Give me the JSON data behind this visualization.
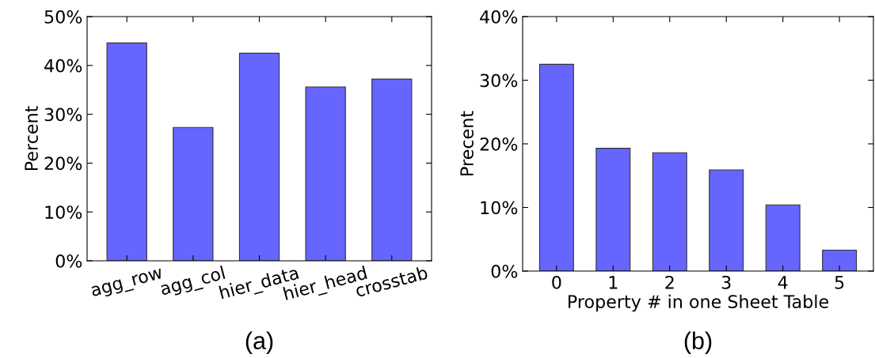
{
  "chart_data": [
    {
      "type": "bar",
      "title": "(a)",
      "ylabel": "Percent",
      "categories": [
        "agg_row",
        "agg_col",
        "hier_data",
        "hier_head",
        "crosstab"
      ],
      "values": [
        44.6,
        27.3,
        42.5,
        35.6,
        37.2
      ],
      "color": "#6666ff",
      "ylim": [
        0,
        50
      ],
      "yticks": [
        {
          "value": 0,
          "label": "0%"
        },
        {
          "value": 10,
          "label": "10%"
        },
        {
          "value": 20,
          "label": "20%"
        },
        {
          "value": 30,
          "label": "30%"
        },
        {
          "value": 40,
          "label": "40%"
        },
        {
          "value": 50,
          "label": "50%"
        }
      ],
      "grid": false
    },
    {
      "type": "bar",
      "title": "(b)",
      "xlabel": "Property # in one Sheet Table",
      "ylabel": "Precent",
      "categories": [
        "0",
        "1",
        "2",
        "3",
        "4",
        "5"
      ],
      "values": [
        32.5,
        19.3,
        18.6,
        15.9,
        10.4,
        3.3
      ],
      "color": "#6666ff",
      "ylim": [
        0,
        40
      ],
      "yticks": [
        {
          "value": 0,
          "label": "0%"
        },
        {
          "value": 10,
          "label": "10%"
        },
        {
          "value": 20,
          "label": "20%"
        },
        {
          "value": 30,
          "label": "30%"
        },
        {
          "value": 40,
          "label": "40%"
        }
      ],
      "grid": false
    }
  ]
}
